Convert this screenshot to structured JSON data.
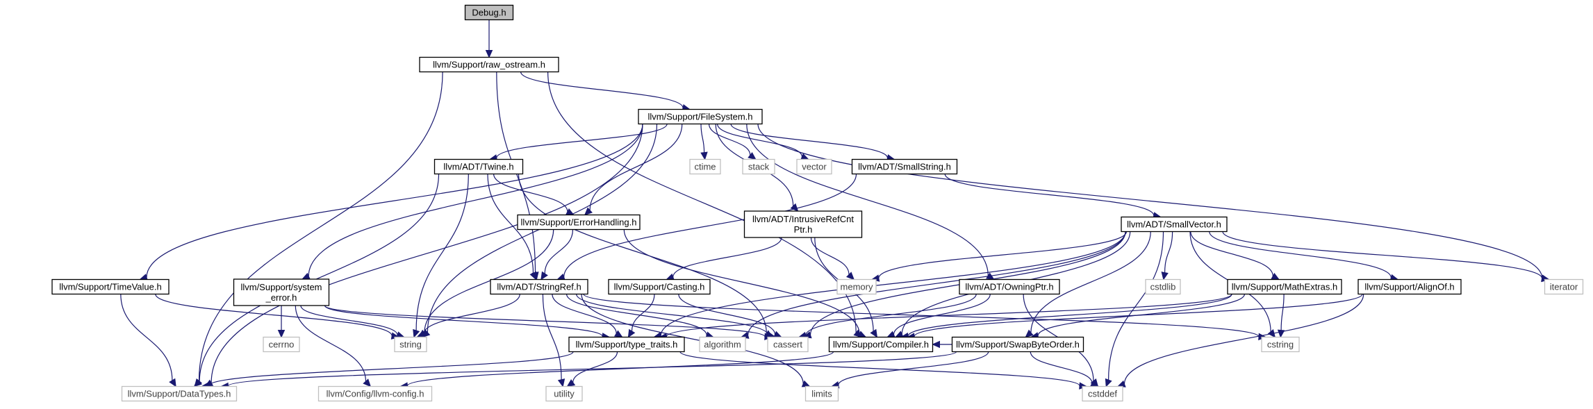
{
  "diagram": {
    "colors": {
      "edge": "#191970",
      "root_fill": "#bfbfbf",
      "node_fill": "#ffffff",
      "node_border": "#000000",
      "external_border": "#bfbfbf",
      "external_text": "#404040"
    },
    "nodes": [
      {
        "id": "debug",
        "lines": [
          "Debug.h"
        ],
        "kind": "root"
      },
      {
        "id": "raw_ostream",
        "lines": [
          "llvm/Support/raw_ostream.h"
        ],
        "kind": "internal"
      },
      {
        "id": "filesystem",
        "lines": [
          "llvm/Support/FileSystem.h"
        ],
        "kind": "internal"
      },
      {
        "id": "twine",
        "lines": [
          "llvm/ADT/Twine.h"
        ],
        "kind": "internal"
      },
      {
        "id": "ctime",
        "lines": [
          "ctime"
        ],
        "kind": "external"
      },
      {
        "id": "stack",
        "lines": [
          "stack"
        ],
        "kind": "external"
      },
      {
        "id": "vector",
        "lines": [
          "vector"
        ],
        "kind": "external"
      },
      {
        "id": "smallstring",
        "lines": [
          "llvm/ADT/SmallString.h"
        ],
        "kind": "internal"
      },
      {
        "id": "errorhandling",
        "lines": [
          "llvm/Support/ErrorHandling.h"
        ],
        "kind": "internal"
      },
      {
        "id": "intrusive",
        "lines": [
          "llvm/ADT/IntrusiveRefCnt",
          "Ptr.h"
        ],
        "kind": "internal"
      },
      {
        "id": "smallvector",
        "lines": [
          "llvm/ADT/SmallVector.h"
        ],
        "kind": "internal"
      },
      {
        "id": "timevalue",
        "lines": [
          "llvm/Support/TimeValue.h"
        ],
        "kind": "internal"
      },
      {
        "id": "system_error",
        "lines": [
          "llvm/Support/system",
          "_error.h"
        ],
        "kind": "internal"
      },
      {
        "id": "stringref",
        "lines": [
          "llvm/ADT/StringRef.h"
        ],
        "kind": "internal"
      },
      {
        "id": "casting",
        "lines": [
          "llvm/Support/Casting.h"
        ],
        "kind": "internal"
      },
      {
        "id": "memory",
        "lines": [
          "memory"
        ],
        "kind": "external"
      },
      {
        "id": "owningptr",
        "lines": [
          "llvm/ADT/OwningPtr.h"
        ],
        "kind": "internal"
      },
      {
        "id": "cstdlib",
        "lines": [
          "cstdlib"
        ],
        "kind": "external"
      },
      {
        "id": "mathextras",
        "lines": [
          "llvm/Support/MathExtras.h"
        ],
        "kind": "internal"
      },
      {
        "id": "alignof",
        "lines": [
          "llvm/Support/AlignOf.h"
        ],
        "kind": "internal"
      },
      {
        "id": "iterator",
        "lines": [
          "iterator"
        ],
        "kind": "external"
      },
      {
        "id": "cerrno",
        "lines": [
          "cerrno"
        ],
        "kind": "external"
      },
      {
        "id": "string",
        "lines": [
          "string"
        ],
        "kind": "external"
      },
      {
        "id": "type_traits",
        "lines": [
          "llvm/Support/type_traits.h"
        ],
        "kind": "internal"
      },
      {
        "id": "algorithm",
        "lines": [
          "algorithm"
        ],
        "kind": "external"
      },
      {
        "id": "cassert",
        "lines": [
          "cassert"
        ],
        "kind": "external"
      },
      {
        "id": "compiler",
        "lines": [
          "llvm/Support/Compiler.h"
        ],
        "kind": "internal"
      },
      {
        "id": "swapbyteorder",
        "lines": [
          "llvm/Support/SwapByteOrder.h"
        ],
        "kind": "internal"
      },
      {
        "id": "cstring",
        "lines": [
          "cstring"
        ],
        "kind": "external"
      },
      {
        "id": "datatypes",
        "lines": [
          "llvm/Support/DataTypes.h"
        ],
        "kind": "external"
      },
      {
        "id": "llvmconfig",
        "lines": [
          "llvm/Config/llvm-config.h"
        ],
        "kind": "external"
      },
      {
        "id": "utility",
        "lines": [
          "utility"
        ],
        "kind": "external"
      },
      {
        "id": "limits",
        "lines": [
          "limits"
        ],
        "kind": "external"
      },
      {
        "id": "cstddef",
        "lines": [
          "cstddef"
        ],
        "kind": "external"
      }
    ],
    "edges": [
      [
        "debug",
        "raw_ostream"
      ],
      [
        "raw_ostream",
        "filesystem"
      ],
      [
        "raw_ostream",
        "datatypes"
      ],
      [
        "raw_ostream",
        "compiler"
      ],
      [
        "raw_ostream",
        "stringref"
      ],
      [
        "filesystem",
        "twine"
      ],
      [
        "filesystem",
        "ctime"
      ],
      [
        "filesystem",
        "stack"
      ],
      [
        "filesystem",
        "vector"
      ],
      [
        "filesystem",
        "smallstring"
      ],
      [
        "filesystem",
        "errorhandling"
      ],
      [
        "filesystem",
        "intrusive"
      ],
      [
        "filesystem",
        "owningptr"
      ],
      [
        "filesystem",
        "timevalue"
      ],
      [
        "filesystem",
        "system_error"
      ],
      [
        "filesystem",
        "string"
      ],
      [
        "filesystem",
        "datatypes"
      ],
      [
        "filesystem",
        "iterator"
      ],
      [
        "twine",
        "errorhandling"
      ],
      [
        "twine",
        "stringref"
      ],
      [
        "twine",
        "string"
      ],
      [
        "twine",
        "datatypes"
      ],
      [
        "twine",
        "cassert"
      ],
      [
        "smallstring",
        "smallvector"
      ],
      [
        "smallstring",
        "stringref"
      ],
      [
        "errorhandling",
        "stringref"
      ],
      [
        "errorhandling",
        "string"
      ],
      [
        "errorhandling",
        "compiler"
      ],
      [
        "intrusive",
        "memory"
      ],
      [
        "intrusive",
        "casting"
      ],
      [
        "intrusive",
        "compiler"
      ],
      [
        "smallvector",
        "memory"
      ],
      [
        "smallvector",
        "cstdlib"
      ],
      [
        "smallvector",
        "mathextras"
      ],
      [
        "smallvector",
        "alignof"
      ],
      [
        "smallvector",
        "iterator"
      ],
      [
        "smallvector",
        "cstring"
      ],
      [
        "smallvector",
        "cstddef"
      ],
      [
        "smallvector",
        "type_traits"
      ],
      [
        "smallvector",
        "algorithm"
      ],
      [
        "smallvector",
        "cassert"
      ],
      [
        "smallvector",
        "compiler"
      ],
      [
        "smallvector",
        "swapbyteorder"
      ],
      [
        "timevalue",
        "datatypes"
      ],
      [
        "timevalue",
        "string"
      ],
      [
        "system_error",
        "cerrno"
      ],
      [
        "system_error",
        "string"
      ],
      [
        "system_error",
        "type_traits"
      ],
      [
        "system_error",
        "llvmconfig"
      ],
      [
        "system_error",
        "cassert"
      ],
      [
        "stringref",
        "type_traits"
      ],
      [
        "stringref",
        "algorithm"
      ],
      [
        "stringref",
        "cassert"
      ],
      [
        "stringref",
        "cstring"
      ],
      [
        "stringref",
        "limits"
      ],
      [
        "stringref",
        "string"
      ],
      [
        "stringref",
        "utility"
      ],
      [
        "casting",
        "type_traits"
      ],
      [
        "casting",
        "cassert"
      ],
      [
        "owningptr",
        "compiler"
      ],
      [
        "owningptr",
        "cassert"
      ],
      [
        "owningptr",
        "cstddef"
      ],
      [
        "mathextras",
        "swapbyteorder"
      ],
      [
        "mathextras",
        "compiler"
      ],
      [
        "mathextras",
        "type_traits"
      ],
      [
        "mathextras",
        "cstring"
      ],
      [
        "alignof",
        "compiler"
      ],
      [
        "alignof",
        "cstddef"
      ],
      [
        "type_traits",
        "datatypes"
      ],
      [
        "type_traits",
        "cstddef"
      ],
      [
        "type_traits",
        "utility"
      ],
      [
        "compiler",
        "llvmconfig"
      ],
      [
        "swapbyteorder",
        "compiler"
      ],
      [
        "swapbyteorder",
        "datatypes"
      ],
      [
        "swapbyteorder",
        "limits"
      ],
      [
        "swapbyteorder",
        "cstddef"
      ]
    ]
  }
}
